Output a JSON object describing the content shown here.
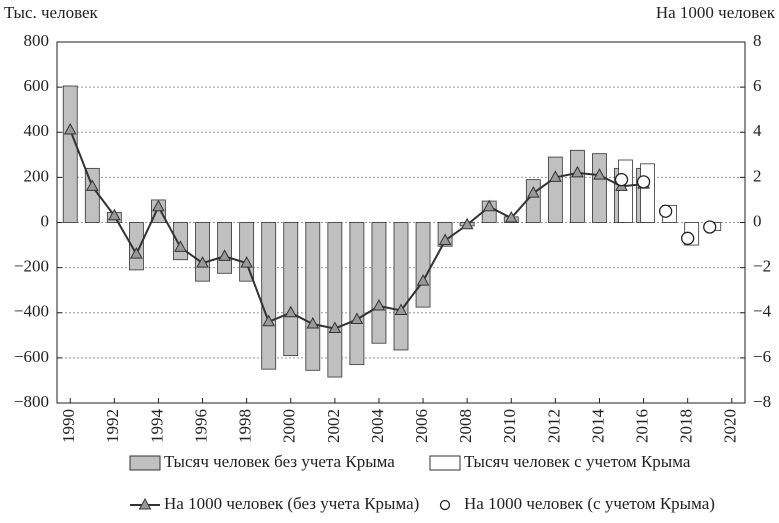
{
  "chart_data": {
    "type": "bar",
    "y_label": "Тыс. человек",
    "y2_label": "На 1000 человек",
    "x": [
      1990,
      1991,
      1992,
      1993,
      1994,
      1995,
      1996,
      1997,
      1998,
      1999,
      2000,
      2001,
      2002,
      2003,
      2004,
      2005,
      2006,
      2007,
      2008,
      2009,
      2010,
      2011,
      2012,
      2013,
      2014,
      2015,
      2016,
      2017,
      2018,
      2019
    ],
    "xlim": [
      1989.4,
      2020.6
    ],
    "xticks": [
      1990,
      1992,
      1994,
      1996,
      1998,
      2000,
      2002,
      2004,
      2006,
      2008,
      2010,
      2012,
      2014,
      2016,
      2018,
      2020
    ],
    "ylim": [
      -800,
      800
    ],
    "yticks": [
      {
        "value": -800,
        "label": "−800"
      },
      {
        "value": -600,
        "label": "−600"
      },
      {
        "value": -400,
        "label": "−400"
      },
      {
        "value": -200,
        "label": "−200"
      },
      0,
      200,
      400,
      600,
      800
    ],
    "y2lim": [
      -8,
      8
    ],
    "y2ticks": [
      {
        "value": -8,
        "label": "−8"
      },
      {
        "value": -6,
        "label": "−6"
      },
      {
        "value": -4,
        "label": "−4"
      },
      {
        "value": -2,
        "label": "−2"
      },
      0,
      2,
      4,
      6,
      8
    ],
    "grid": true,
    "series": [
      {
        "name": "Тысяч человек без учета Крыма",
        "type": "bar",
        "color": "#c0c0c0",
        "values": [
          605,
          240,
          45,
          -210,
          100,
          -165,
          -260,
          -225,
          -260,
          -650,
          -590,
          -655,
          -685,
          -630,
          -535,
          -565,
          -375,
          -105,
          -15,
          95,
          25,
          190,
          290,
          320,
          305,
          240,
          240,
          null,
          null,
          null
        ]
      },
      {
        "name": "Тысяч человек с учетом Крыма",
        "type": "bar",
        "color": "#ffffff",
        "values": [
          null,
          null,
          null,
          null,
          null,
          null,
          null,
          null,
          null,
          null,
          null,
          null,
          null,
          null,
          null,
          null,
          null,
          null,
          null,
          null,
          null,
          null,
          null,
          null,
          null,
          277,
          260,
          76,
          -100,
          -35
        ]
      },
      {
        "name": "На 1000 человек (без учета Крыма)",
        "type": "line",
        "axis": "y2",
        "color": "#333333",
        "values": [
          4.1,
          1.6,
          0.3,
          -1.4,
          0.7,
          -1.1,
          -1.8,
          -1.5,
          -1.8,
          -4.4,
          -4.0,
          -4.5,
          -4.7,
          -4.3,
          -3.7,
          -3.9,
          -2.6,
          -0.8,
          -0.1,
          0.7,
          0.2,
          1.3,
          2.0,
          2.2,
          2.1,
          1.6,
          1.7,
          null,
          null,
          null
        ]
      },
      {
        "name": "На 1000 человек (с учетом Крыма)",
        "type": "scatter",
        "axis": "y2",
        "color": "#ffffff",
        "values": [
          null,
          null,
          null,
          null,
          null,
          null,
          null,
          null,
          null,
          null,
          null,
          null,
          null,
          null,
          null,
          null,
          null,
          null,
          null,
          null,
          null,
          null,
          null,
          null,
          null,
          1.9,
          1.8,
          0.5,
          -0.7,
          -0.2
        ]
      }
    ]
  }
}
